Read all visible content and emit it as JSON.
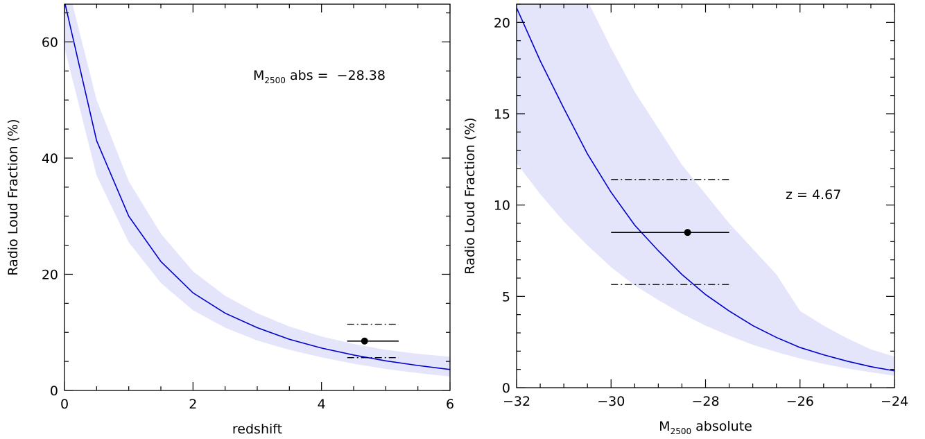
{
  "chart_data": [
    {
      "type": "line",
      "ylabel": "Radio Loud Fraction (%)",
      "xlabel": "redshift",
      "annotation": {
        "main": "M",
        "sub": "2500",
        "tail": " abs =  −28.38"
      },
      "xlim": [
        0,
        6
      ],
      "ylim": [
        0,
        66.5
      ],
      "xticks": [
        0,
        2,
        4,
        6
      ],
      "yticks": [
        0,
        20,
        40,
        60
      ],
      "xminorticks": [
        0.5,
        1,
        1.5,
        2.5,
        3,
        3.5,
        4.5,
        5,
        5.5
      ],
      "yminorticks": [
        5,
        10,
        15,
        25,
        30,
        35,
        45,
        50,
        55,
        65
      ],
      "x": [
        0,
        0.5,
        1,
        1.5,
        2,
        2.5,
        3,
        3.5,
        4,
        4.5,
        5,
        5.5,
        6
      ],
      "series": [
        {
          "color": "#0000cc",
          "values": [
            67,
            43,
            30,
            22.2,
            16.8,
            13.3,
            10.8,
            8.8,
            7.3,
            6.1,
            5.1,
            4.3,
            3.6
          ]
        }
      ],
      "band": {
        "color": "#e4e4fb",
        "lower": [
          59,
          37,
          25.5,
          18.5,
          13.8,
          10.8,
          8.6,
          7,
          5.7,
          4.6,
          3.7,
          3,
          2.4
        ],
        "upper": [
          72,
          50,
          36,
          27,
          20.5,
          16.3,
          13.3,
          11,
          9.3,
          8,
          7,
          6.3,
          5.8
        ]
      },
      "points": [
        {
          "x": 4.67,
          "y": 8.5,
          "xerr_low": 4.4,
          "xerr_high": 5.2
        }
      ],
      "hlines": [
        {
          "y": 11.4,
          "x0": 4.4,
          "x1": 5.2
        },
        {
          "y": 5.65,
          "x0": 4.4,
          "x1": 5.2
        }
      ]
    },
    {
      "type": "line",
      "ylabel": "Radio Loud Fraction (%)",
      "xlabel": {
        "main": "M",
        "sub": "2500",
        "tail": " absolute"
      },
      "annotation": {
        "main": "z = 4.67"
      },
      "xlim": [
        -32,
        -24
      ],
      "ylim": [
        0,
        21
      ],
      "xticks": [
        {
          "value": -32,
          "label": "−32"
        },
        {
          "value": -30,
          "label": "−30"
        },
        {
          "value": -28,
          "label": "−28"
        },
        {
          "value": -26,
          "label": "−26"
        },
        {
          "value": -24,
          "label": "−24"
        }
      ],
      "yticks": [
        0,
        5,
        10,
        15,
        20
      ],
      "xminorticks": [
        -31.5,
        -31,
        -30.5,
        -29.5,
        -29,
        -28.5,
        -27.5,
        -27,
        -26.5,
        -25.5,
        -25,
        -24.5
      ],
      "yminorticks": [
        1,
        2,
        3,
        4,
        6,
        7,
        8,
        9,
        11,
        12,
        13,
        14,
        16,
        17,
        18,
        19,
        21
      ],
      "x": [
        -32,
        -31.5,
        -31,
        -30.5,
        -30,
        -29.5,
        -29,
        -28.5,
        -28,
        -27.5,
        -27,
        -26.5,
        -26,
        -25.5,
        -25,
        -24.5,
        -24
      ],
      "series": [
        {
          "color": "#0000cc",
          "values": [
            20.8,
            17.9,
            15.3,
            12.8,
            10.7,
            8.9,
            7.5,
            6.2,
            5.1,
            4.2,
            3.4,
            2.75,
            2.2,
            1.8,
            1.45,
            1.15,
            0.92
          ]
        }
      ],
      "band": {
        "color": "#e4e4fb",
        "lower": [
          12.3,
          10.6,
          9.1,
          7.8,
          6.6,
          5.6,
          4.8,
          4.05,
          3.4,
          2.85,
          2.35,
          1.95,
          1.6,
          1.3,
          1.05,
          0.85,
          0.65
        ],
        "upper": [
          30,
          27,
          24,
          21.2,
          18.6,
          16.2,
          14.2,
          12.2,
          10.6,
          9,
          7.6,
          6.2,
          4.2,
          3.4,
          2.7,
          2.1,
          1.7
        ]
      },
      "points": [
        {
          "x": -28.38,
          "y": 8.5,
          "xerr_low": -30,
          "xerr_high": -27.5
        }
      ],
      "hlines": [
        {
          "y": 11.4,
          "x0": -30,
          "x1": -27.5
        },
        {
          "y": 5.65,
          "x0": -30,
          "x1": -27.5
        }
      ]
    }
  ]
}
